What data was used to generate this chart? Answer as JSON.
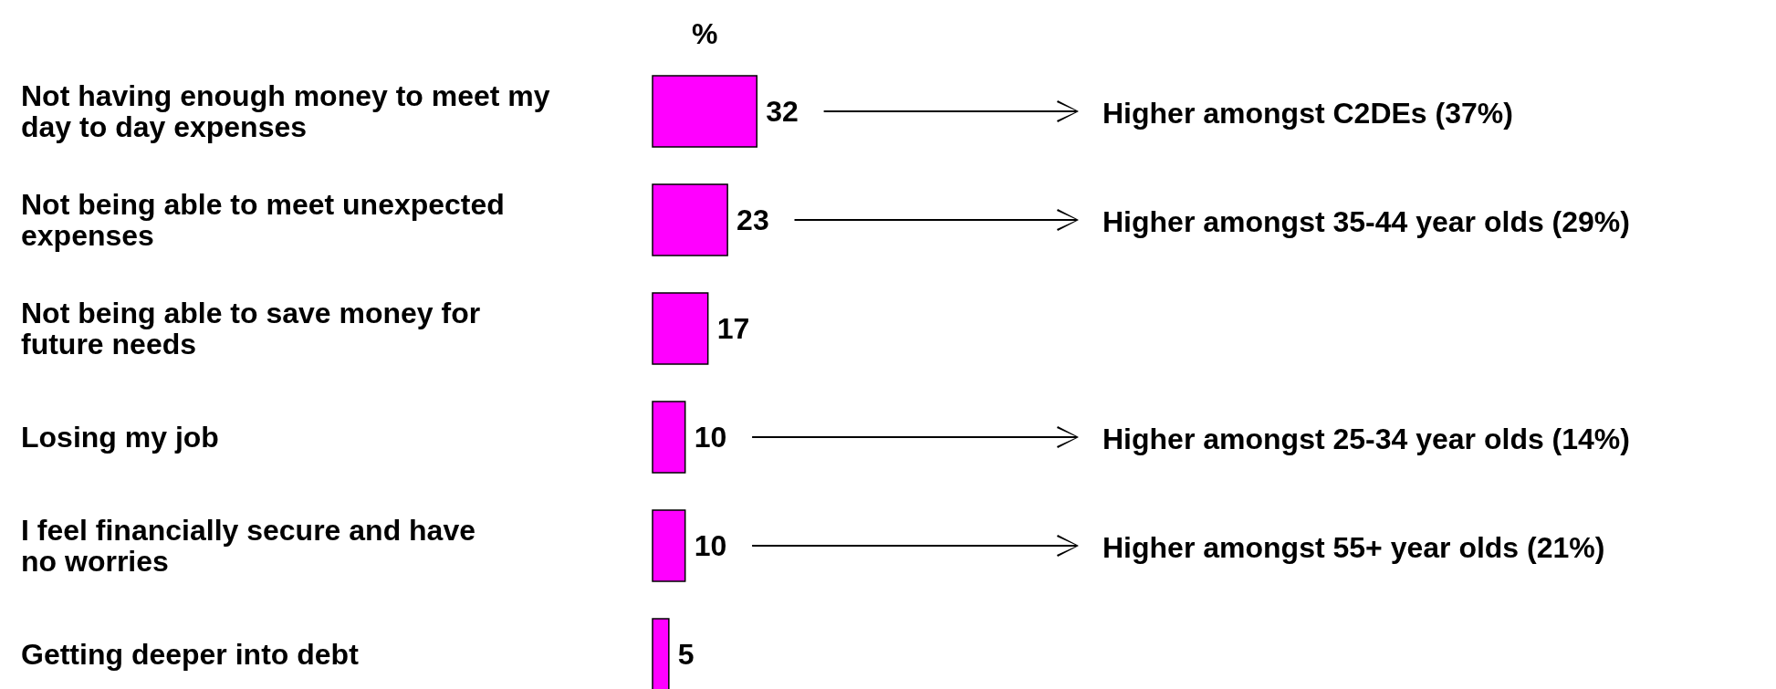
{
  "chart_data": {
    "type": "bar",
    "orientation": "horizontal",
    "xlabel": "%",
    "categories": [
      "Not having enough money to meet my day to day expenses",
      "Not being able to meet unexpected expenses",
      "Not being able to save money for future needs",
      "Losing my job",
      "I feel financially secure and have no worries",
      "Getting deeper into debt"
    ],
    "values": [
      32,
      23,
      17,
      10,
      10,
      5
    ],
    "color": "#ff00ff",
    "data_labels": true,
    "annotations": [
      "Higher amongst C2DEs (37%)",
      "Higher amongst 35-44 year olds (29%)",
      "Higher amongst 25-34 year olds (14%)",
      "Higher amongst 55+ year olds (21%)"
    ]
  }
}
